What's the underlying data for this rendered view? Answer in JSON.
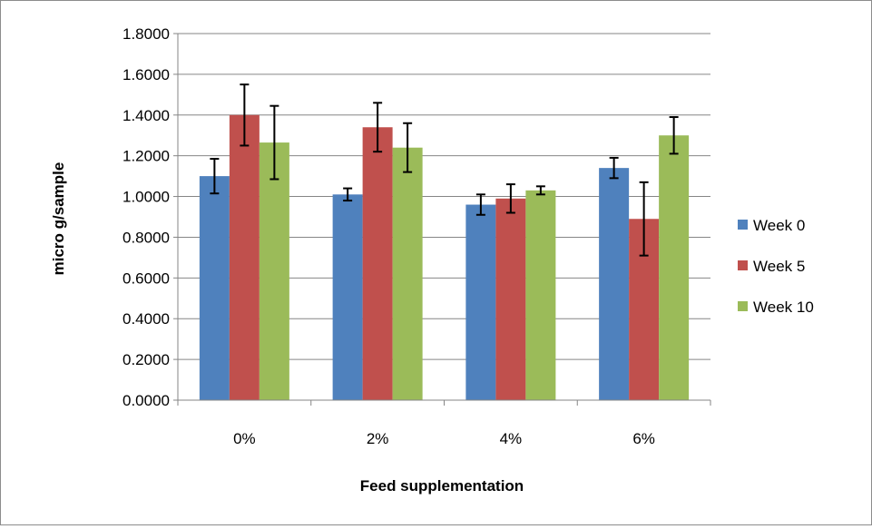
{
  "chart_data": {
    "type": "bar",
    "title": "",
    "xlabel": "Feed supplementation",
    "ylabel": "micro g/sample",
    "ylim": [
      0,
      1.8
    ],
    "ytick_step": 0.2,
    "ytick_decimals": 4,
    "grid": true,
    "legend_position": "right",
    "categories": [
      "0%",
      "2%",
      "4%",
      "6%"
    ],
    "series": [
      {
        "name": "Week 0",
        "color": "#4F81BD",
        "values": [
          1.1,
          1.01,
          0.96,
          1.14
        ],
        "errors": [
          0.085,
          0.03,
          0.05,
          0.05
        ]
      },
      {
        "name": "Week 5",
        "color": "#C0504D",
        "values": [
          1.4,
          1.34,
          0.99,
          0.89
        ],
        "errors": [
          0.15,
          0.12,
          0.07,
          0.18
        ]
      },
      {
        "name": "Week 10",
        "color": "#9BBB59",
        "values": [
          1.265,
          1.24,
          1.03,
          1.3
        ],
        "errors": [
          0.18,
          0.12,
          0.02,
          0.09
        ]
      }
    ]
  }
}
